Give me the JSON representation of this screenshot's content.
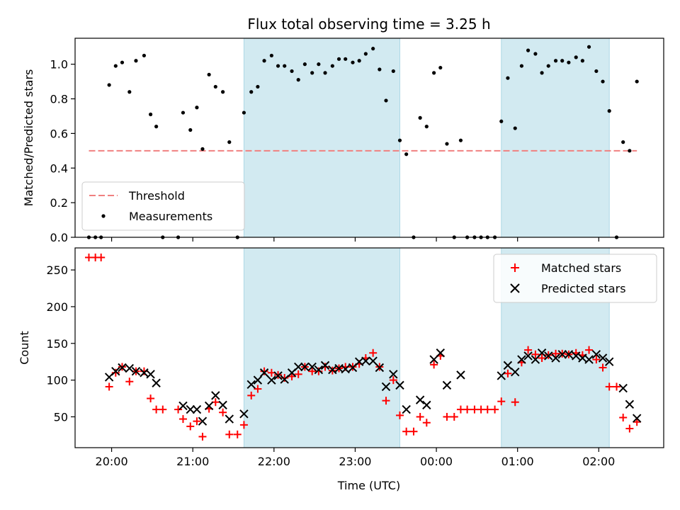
{
  "figure": {
    "title": "Flux total observing time = 3.25 h"
  },
  "colors": {
    "shade": "#add8e6",
    "threshold": "#f08080",
    "matched": "#ff0000",
    "predicted": "#000000",
    "measurement": "#000000"
  },
  "chart_data": [
    {
      "type": "scatter",
      "id": "ratio",
      "ylabel": "Matched/Predicted stars",
      "xlabel": "",
      "x_unit": "hours (UTC, >24 = after midnight)",
      "xlim": [
        19.55,
        26.8
      ],
      "ylim": [
        0,
        1.15
      ],
      "yticks": [
        0.0,
        0.2,
        0.4,
        0.6,
        0.8,
        1.0
      ],
      "ytick_labels": [
        "0.0",
        "0.2",
        "0.4",
        "0.6",
        "0.8",
        "1.0"
      ],
      "grid": false,
      "legend_position": "lower-left",
      "shaded_spans": [
        [
          21.63,
          23.55
        ],
        [
          24.8,
          26.13
        ]
      ],
      "threshold": {
        "name": "Threshold",
        "value": 0.5,
        "x_range": [
          19.72,
          26.47
        ],
        "style": "dashed"
      },
      "series": [
        {
          "name": "Measurements",
          "points": [
            [
              19.72,
              0.0
            ],
            [
              19.8,
              0.0
            ],
            [
              19.87,
              0.0
            ],
            [
              19.97,
              0.88
            ],
            [
              20.05,
              0.99
            ],
            [
              20.13,
              1.01
            ],
            [
              20.22,
              0.84
            ],
            [
              20.3,
              1.02
            ],
            [
              20.4,
              1.05
            ],
            [
              20.48,
              0.71
            ],
            [
              20.55,
              0.64
            ],
            [
              20.63,
              0.0
            ],
            [
              20.82,
              0.0
            ],
            [
              20.88,
              0.72
            ],
            [
              20.97,
              0.62
            ],
            [
              21.05,
              0.75
            ],
            [
              21.12,
              0.51
            ],
            [
              21.2,
              0.94
            ],
            [
              21.28,
              0.87
            ],
            [
              21.37,
              0.84
            ],
            [
              21.45,
              0.55
            ],
            [
              21.55,
              0.0
            ],
            [
              21.63,
              0.72
            ],
            [
              21.72,
              0.84
            ],
            [
              21.8,
              0.87
            ],
            [
              21.88,
              1.02
            ],
            [
              21.97,
              1.05
            ],
            [
              22.05,
              0.99
            ],
            [
              22.13,
              0.99
            ],
            [
              22.22,
              0.96
            ],
            [
              22.3,
              0.91
            ],
            [
              22.38,
              1.0
            ],
            [
              22.47,
              0.95
            ],
            [
              22.55,
              1.0
            ],
            [
              22.63,
              0.95
            ],
            [
              22.72,
              0.99
            ],
            [
              22.8,
              1.03
            ],
            [
              22.88,
              1.03
            ],
            [
              22.97,
              1.01
            ],
            [
              23.05,
              1.02
            ],
            [
              23.13,
              1.06
            ],
            [
              23.22,
              1.09
            ],
            [
              23.3,
              0.97
            ],
            [
              23.38,
              0.79
            ],
            [
              23.47,
              0.96
            ],
            [
              23.55,
              0.56
            ],
            [
              23.63,
              0.48
            ],
            [
              23.72,
              0.0
            ],
            [
              23.8,
              0.69
            ],
            [
              23.88,
              0.64
            ],
            [
              23.97,
              0.95
            ],
            [
              24.05,
              0.98
            ],
            [
              24.13,
              0.54
            ],
            [
              24.22,
              0.0
            ],
            [
              24.3,
              0.56
            ],
            [
              24.38,
              0.0
            ],
            [
              24.47,
              0.0
            ],
            [
              24.55,
              0.0
            ],
            [
              24.63,
              0.0
            ],
            [
              24.72,
              0.0
            ],
            [
              24.8,
              0.67
            ],
            [
              24.88,
              0.92
            ],
            [
              24.97,
              0.63
            ],
            [
              25.05,
              0.99
            ],
            [
              25.13,
              1.08
            ],
            [
              25.22,
              1.06
            ],
            [
              25.3,
              0.95
            ],
            [
              25.38,
              0.99
            ],
            [
              25.47,
              1.02
            ],
            [
              25.55,
              1.02
            ],
            [
              25.63,
              1.01
            ],
            [
              25.72,
              1.04
            ],
            [
              25.8,
              1.02
            ],
            [
              25.88,
              1.1
            ],
            [
              25.97,
              0.96
            ],
            [
              26.05,
              0.9
            ],
            [
              26.13,
              0.73
            ],
            [
              26.22,
              0.0
            ],
            [
              26.3,
              0.55
            ],
            [
              26.38,
              0.5
            ],
            [
              26.47,
              0.9
            ]
          ]
        }
      ]
    },
    {
      "type": "scatter",
      "id": "counts",
      "ylabel": "Count",
      "xlabel": "Time (UTC)",
      "x_unit": "hours (UTC, >24 = after midnight)",
      "xlim": [
        19.55,
        26.8
      ],
      "ylim": [
        8,
        280
      ],
      "yticks": [
        50,
        100,
        150,
        200,
        250
      ],
      "ytick_labels": [
        "50",
        "100",
        "150",
        "200",
        "250"
      ],
      "xticks": [
        20,
        21,
        22,
        23,
        24,
        25,
        26
      ],
      "xtick_labels": [
        "20:00",
        "21:00",
        "22:00",
        "23:00",
        "00:00",
        "01:00",
        "02:00"
      ],
      "grid": false,
      "legend_position": "upper-right",
      "shaded_spans": [
        [
          21.63,
          23.55
        ],
        [
          24.8,
          26.13
        ]
      ],
      "series": [
        {
          "name": "Matched stars",
          "marker": "plus",
          "points": [
            [
              19.72,
              267
            ],
            [
              19.8,
              267
            ],
            [
              19.87,
              267
            ],
            [
              19.97,
              91
            ],
            [
              20.05,
              110
            ],
            [
              20.13,
              118
            ],
            [
              20.22,
              98
            ],
            [
              20.3,
              112
            ],
            [
              20.4,
              112
            ],
            [
              20.48,
              75
            ],
            [
              20.55,
              60
            ],
            [
              20.63,
              60
            ],
            [
              20.82,
              60
            ],
            [
              20.88,
              47
            ],
            [
              20.97,
              37
            ],
            [
              21.05,
              44
            ],
            [
              21.12,
              23
            ],
            [
              21.2,
              61
            ],
            [
              21.28,
              70
            ],
            [
              21.37,
              56
            ],
            [
              21.45,
              26
            ],
            [
              21.55,
              26
            ],
            [
              21.63,
              39
            ],
            [
              21.72,
              79
            ],
            [
              21.8,
              88
            ],
            [
              21.88,
              112
            ],
            [
              21.97,
              110
            ],
            [
              22.05,
              107
            ],
            [
              22.13,
              103
            ],
            [
              22.22,
              105
            ],
            [
              22.3,
              108
            ],
            [
              22.38,
              118
            ],
            [
              22.47,
              112
            ],
            [
              22.55,
              112
            ],
            [
              22.63,
              118
            ],
            [
              22.72,
              113
            ],
            [
              22.8,
              116
            ],
            [
              22.88,
              118
            ],
            [
              22.97,
              118
            ],
            [
              23.05,
              122
            ],
            [
              23.13,
              130
            ],
            [
              23.22,
              137
            ],
            [
              23.3,
              118
            ],
            [
              23.38,
              72
            ],
            [
              23.47,
              100
            ],
            [
              23.55,
              52
            ],
            [
              23.63,
              30
            ],
            [
              23.72,
              30
            ],
            [
              23.8,
              50
            ],
            [
              23.88,
              42
            ],
            [
              23.97,
              121
            ],
            [
              24.05,
              133
            ],
            [
              24.13,
              50
            ],
            [
              24.22,
              50
            ],
            [
              24.3,
              60
            ],
            [
              24.38,
              60
            ],
            [
              24.47,
              60
            ],
            [
              24.55,
              60
            ],
            [
              24.63,
              60
            ],
            [
              24.72,
              60
            ],
            [
              24.8,
              71
            ],
            [
              24.88,
              109
            ],
            [
              24.97,
              70
            ],
            [
              25.05,
              124
            ],
            [
              25.13,
              141
            ],
            [
              25.22,
              135
            ],
            [
              25.3,
              130
            ],
            [
              25.38,
              134
            ],
            [
              25.47,
              136
            ],
            [
              25.55,
              136
            ],
            [
              25.63,
              135
            ],
            [
              25.72,
              137
            ],
            [
              25.8,
              134
            ],
            [
              25.88,
              141
            ],
            [
              25.97,
              128
            ],
            [
              26.05,
              117
            ],
            [
              26.13,
              91
            ],
            [
              26.22,
              91
            ],
            [
              26.3,
              49
            ],
            [
              26.38,
              34
            ],
            [
              26.47,
              43
            ]
          ]
        },
        {
          "name": "Predicted stars",
          "marker": "x",
          "points": [
            [
              19.97,
              104
            ],
            [
              20.05,
              112
            ],
            [
              20.13,
              117
            ],
            [
              20.22,
              116
            ],
            [
              20.3,
              112
            ],
            [
              20.4,
              110
            ],
            [
              20.48,
              108
            ],
            [
              20.55,
              96
            ],
            [
              20.88,
              65
            ],
            [
              20.97,
              60
            ],
            [
              21.05,
              60
            ],
            [
              21.12,
              44
            ],
            [
              21.2,
              65
            ],
            [
              21.28,
              79
            ],
            [
              21.37,
              66
            ],
            [
              21.45,
              47
            ],
            [
              21.63,
              54
            ],
            [
              21.72,
              94
            ],
            [
              21.8,
              100
            ],
            [
              21.88,
              110
            ],
            [
              21.97,
              100
            ],
            [
              22.05,
              106
            ],
            [
              22.13,
              101
            ],
            [
              22.22,
              110
            ],
            [
              22.3,
              118
            ],
            [
              22.38,
              118
            ],
            [
              22.47,
              118
            ],
            [
              22.55,
              114
            ],
            [
              22.63,
              120
            ],
            [
              22.72,
              114
            ],
            [
              22.8,
              116
            ],
            [
              22.88,
              115
            ],
            [
              22.97,
              117
            ],
            [
              23.05,
              125
            ],
            [
              23.13,
              126
            ],
            [
              23.22,
              126
            ],
            [
              23.3,
              117
            ],
            [
              23.38,
              91
            ],
            [
              23.47,
              108
            ],
            [
              23.55,
              93
            ],
            [
              23.63,
              60
            ],
            [
              23.8,
              73
            ],
            [
              23.88,
              66
            ],
            [
              23.97,
              128
            ],
            [
              24.05,
              137
            ],
            [
              24.13,
              93
            ],
            [
              24.3,
              107
            ],
            [
              24.8,
              106
            ],
            [
              24.88,
              120
            ],
            [
              24.97,
              111
            ],
            [
              25.05,
              128
            ],
            [
              25.13,
              133
            ],
            [
              25.22,
              128
            ],
            [
              25.3,
              137
            ],
            [
              25.38,
              133
            ],
            [
              25.47,
              130
            ],
            [
              25.55,
              135
            ],
            [
              25.63,
              135
            ],
            [
              25.72,
              133
            ],
            [
              25.8,
              130
            ],
            [
              25.88,
              128
            ],
            [
              25.97,
              135
            ],
            [
              26.05,
              130
            ],
            [
              26.13,
              125
            ],
            [
              26.3,
              89
            ],
            [
              26.38,
              67
            ],
            [
              26.47,
              48
            ]
          ]
        }
      ]
    }
  ]
}
